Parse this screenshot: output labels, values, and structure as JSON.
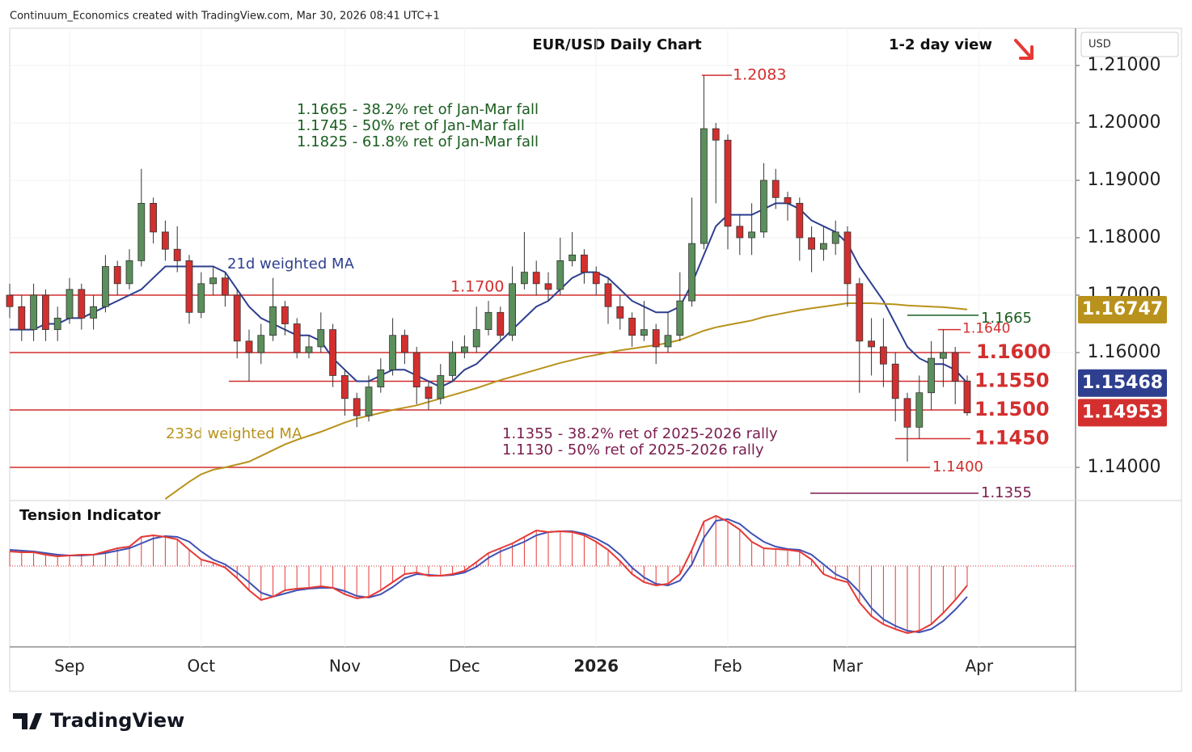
{
  "header": "Continuum_Economics created with TradingView.com, Mar 30, 2026 08:41 UTC+1",
  "brand": "TradingView",
  "chart_data": {
    "type": "candlestick",
    "title": "EUR/USD Daily Chart",
    "subtitle": "1-2 day view",
    "currency": "USD",
    "categories": [
      null,
      null,
      null,
      null,
      null,
      "Sep",
      null,
      null,
      null,
      null,
      null,
      null,
      null,
      null,
      null,
      null,
      "Oct",
      null,
      null,
      null,
      null,
      null,
      null,
      null,
      null,
      null,
      null,
      null,
      "Nov",
      null,
      null,
      null,
      null,
      null,
      null,
      null,
      null,
      null,
      "Dec",
      null,
      null,
      null,
      null,
      null,
      null,
      null,
      null,
      null,
      null,
      "2026",
      null,
      null,
      null,
      null,
      null,
      null,
      null,
      null,
      null,
      null,
      "Feb",
      null,
      null,
      null,
      null,
      null,
      null,
      null,
      null,
      null,
      "Mar",
      null,
      null,
      null,
      null,
      null,
      null,
      null,
      null,
      null,
      null,
      "Apr"
    ],
    "ohlc": [
      [
        1.17,
        1.172,
        1.166,
        1.168
      ],
      [
        1.168,
        1.17,
        1.162,
        1.164
      ],
      [
        1.164,
        1.172,
        1.162,
        1.17
      ],
      [
        1.17,
        1.171,
        1.162,
        1.164
      ],
      [
        1.164,
        1.168,
        1.162,
        1.166
      ],
      [
        1.166,
        1.173,
        1.165,
        1.171
      ],
      [
        1.171,
        1.172,
        1.164,
        1.166
      ],
      [
        1.166,
        1.17,
        1.164,
        1.168
      ],
      [
        1.168,
        1.177,
        1.167,
        1.175
      ],
      [
        1.175,
        1.176,
        1.17,
        1.172
      ],
      [
        1.172,
        1.178,
        1.171,
        1.176
      ],
      [
        1.176,
        1.192,
        1.175,
        1.186
      ],
      [
        1.186,
        1.187,
        1.179,
        1.181
      ],
      [
        1.181,
        1.183,
        1.176,
        1.178
      ],
      [
        1.178,
        1.182,
        1.174,
        1.176
      ],
      [
        1.176,
        1.177,
        1.165,
        1.167
      ],
      [
        1.167,
        1.174,
        1.166,
        1.172
      ],
      [
        1.172,
        1.175,
        1.17,
        1.173
      ],
      [
        1.173,
        1.174,
        1.168,
        1.17
      ],
      [
        1.17,
        1.171,
        1.159,
        1.162
      ],
      [
        1.162,
        1.164,
        1.155,
        1.16
      ],
      [
        1.16,
        1.165,
        1.158,
        1.163
      ],
      [
        1.163,
        1.173,
        1.162,
        1.168
      ],
      [
        1.168,
        1.169,
        1.163,
        1.165
      ],
      [
        1.165,
        1.166,
        1.159,
        1.16
      ],
      [
        1.16,
        1.163,
        1.159,
        1.161
      ],
      [
        1.161,
        1.167,
        1.16,
        1.164
      ],
      [
        1.164,
        1.165,
        1.154,
        1.156
      ],
      [
        1.156,
        1.157,
        1.149,
        1.152
      ],
      [
        1.152,
        1.153,
        1.147,
        1.149
      ],
      [
        1.149,
        1.156,
        1.148,
        1.154
      ],
      [
        1.154,
        1.159,
        1.153,
        1.157
      ],
      [
        1.157,
        1.166,
        1.156,
        1.163
      ],
      [
        1.163,
        1.164,
        1.158,
        1.16
      ],
      [
        1.16,
        1.161,
        1.151,
        1.154
      ],
      [
        1.154,
        1.155,
        1.15,
        1.152
      ],
      [
        1.152,
        1.158,
        1.151,
        1.156
      ],
      [
        1.156,
        1.162,
        1.155,
        1.16
      ],
      [
        1.16,
        1.163,
        1.159,
        1.161
      ],
      [
        1.161,
        1.168,
        1.16,
        1.164
      ],
      [
        1.164,
        1.169,
        1.163,
        1.167
      ],
      [
        1.167,
        1.168,
        1.162,
        1.163
      ],
      [
        1.163,
        1.175,
        1.162,
        1.172
      ],
      [
        1.172,
        1.181,
        1.171,
        1.174
      ],
      [
        1.174,
        1.176,
        1.17,
        1.172
      ],
      [
        1.172,
        1.174,
        1.169,
        1.171
      ],
      [
        1.171,
        1.18,
        1.17,
        1.176
      ],
      [
        1.176,
        1.181,
        1.175,
        1.177
      ],
      [
        1.177,
        1.178,
        1.172,
        1.174
      ],
      [
        1.174,
        1.175,
        1.17,
        1.172
      ],
      [
        1.172,
        1.173,
        1.165,
        1.168
      ],
      [
        1.168,
        1.17,
        1.164,
        1.166
      ],
      [
        1.166,
        1.167,
        1.161,
        1.163
      ],
      [
        1.163,
        1.169,
        1.162,
        1.164
      ],
      [
        1.164,
        1.165,
        1.158,
        1.161
      ],
      [
        1.161,
        1.167,
        1.16,
        1.163
      ],
      [
        1.163,
        1.174,
        1.162,
        1.169
      ],
      [
        1.169,
        1.187,
        1.168,
        1.179
      ],
      [
        1.179,
        1.2083,
        1.178,
        1.199
      ],
      [
        1.199,
        1.2,
        1.186,
        1.197
      ],
      [
        1.197,
        1.198,
        1.178,
        1.182
      ],
      [
        1.182,
        1.184,
        1.177,
        1.18
      ],
      [
        1.18,
        1.186,
        1.177,
        1.181
      ],
      [
        1.181,
        1.193,
        1.18,
        1.19
      ],
      [
        1.19,
        1.192,
        1.185,
        1.187
      ],
      [
        1.187,
        1.188,
        1.183,
        1.186
      ],
      [
        1.186,
        1.187,
        1.176,
        1.18
      ],
      [
        1.18,
        1.182,
        1.174,
        1.178
      ],
      [
        1.178,
        1.182,
        1.176,
        1.179
      ],
      [
        1.179,
        1.183,
        1.177,
        1.181
      ],
      [
        1.181,
        1.182,
        1.168,
        1.172
      ],
      [
        1.172,
        1.173,
        1.153,
        1.162
      ],
      [
        1.162,
        1.166,
        1.156,
        1.161
      ],
      [
        1.161,
        1.166,
        1.154,
        1.158
      ],
      [
        1.158,
        1.16,
        1.148,
        1.152
      ],
      [
        1.152,
        1.153,
        1.141,
        1.147
      ],
      [
        1.147,
        1.156,
        1.145,
        1.153
      ],
      [
        1.153,
        1.162,
        1.15,
        1.159
      ],
      [
        1.159,
        1.164,
        1.154,
        1.16
      ],
      [
        1.16,
        1.161,
        1.151,
        1.155
      ],
      [
        1.155,
        1.156,
        1.149,
        1.1495
      ],
      null
    ],
    "up_color": "#5b8f5b",
    "down_color": "#d32f2f",
    "series": [
      {
        "name": "21d weighted MA",
        "color": "#2e3f8f",
        "values": [
          1.164,
          1.164,
          1.164,
          1.165,
          1.165,
          1.166,
          1.166,
          1.167,
          1.168,
          1.169,
          1.17,
          1.171,
          1.173,
          1.175,
          1.175,
          1.175,
          1.175,
          1.175,
          1.174,
          1.171,
          1.168,
          1.166,
          1.165,
          1.164,
          1.163,
          1.163,
          1.162,
          1.159,
          1.157,
          1.155,
          1.155,
          1.156,
          1.157,
          1.157,
          1.156,
          1.155,
          1.154,
          1.155,
          1.157,
          1.158,
          1.16,
          1.162,
          1.164,
          1.166,
          1.168,
          1.169,
          1.171,
          1.173,
          1.174,
          1.174,
          1.173,
          1.171,
          1.169,
          1.168,
          1.167,
          1.167,
          1.168,
          1.172,
          1.177,
          1.182,
          1.184,
          1.184,
          1.184,
          1.185,
          1.186,
          1.186,
          1.185,
          1.183,
          1.182,
          1.181,
          1.179,
          1.175,
          1.172,
          1.169,
          1.165,
          1.161,
          1.159,
          1.158,
          1.158,
          1.157,
          1.1547,
          null
        ]
      },
      {
        "name": "233d weighted MA",
        "color": "#b8921c",
        "values": [
          null,
          null,
          null,
          null,
          null,
          null,
          null,
          null,
          null,
          null,
          null,
          null,
          null,
          1.1345,
          1.136,
          1.1375,
          1.1388,
          1.1396,
          1.14,
          1.1405,
          1.141,
          1.142,
          1.143,
          1.144,
          1.1448,
          1.1455,
          1.1462,
          1.147,
          1.1478,
          1.1485,
          1.149,
          1.1495,
          1.15,
          1.1504,
          1.1508,
          1.1514,
          1.152,
          1.1526,
          1.1532,
          1.1538,
          1.1545,
          1.1552,
          1.1558,
          1.1564,
          1.157,
          1.1576,
          1.1582,
          1.1587,
          1.1592,
          1.1596,
          1.16,
          1.1604,
          1.1607,
          1.161,
          1.1613,
          1.1617,
          1.1622,
          1.163,
          1.1638,
          1.1644,
          1.1648,
          1.1652,
          1.1656,
          1.1662,
          1.1666,
          1.167,
          1.1674,
          1.1677,
          1.168,
          1.1683,
          1.1686,
          1.1686,
          1.1686,
          1.1685,
          1.1684,
          1.1682,
          1.1681,
          1.168,
          1.1679,
          1.1677,
          1.1675,
          null
        ]
      }
    ],
    "ylim": [
      1.13437,
      1.21648
    ],
    "yticks": [
      {
        "value": 1.21,
        "label": "1.21000"
      },
      {
        "value": 1.2,
        "label": "1.20000"
      },
      {
        "value": 1.19,
        "label": "1.19000"
      },
      {
        "value": 1.18,
        "label": "1.18000"
      },
      {
        "value": 1.17,
        "label": "1.17000"
      },
      {
        "value": 1.16,
        "label": "1.16000"
      },
      {
        "value": 1.14,
        "label": "1.14000"
      }
    ],
    "price_labels": [
      {
        "value": 1.16747,
        "color": "#b8921c"
      },
      {
        "value": 1.15468,
        "color": "#2e3f8f"
      },
      {
        "value": 1.14953,
        "color": "#d32f2f"
      }
    ],
    "levels": [
      {
        "value": 1.2083,
        "label": "1.2083"
      },
      {
        "value": 1.17,
        "label": "1.1700"
      },
      {
        "value": 1.1665,
        "label": "1.1665"
      },
      {
        "value": 1.164,
        "label": "1.1640"
      },
      {
        "value": 1.16,
        "label": "1.1600"
      },
      {
        "value": 1.155,
        "label": "1.1550"
      },
      {
        "value": 1.15,
        "label": "1.1500"
      },
      {
        "value": 1.145,
        "label": "1.1450"
      },
      {
        "value": 1.14,
        "label": "1.1400"
      },
      {
        "value": 1.1355,
        "label": "1.1355"
      }
    ],
    "fib_notes_green": [
      "1.1665 - 38.2% ret of Jan-Mar fall",
      "1.1745 - 50% ret of Jan-Mar fall",
      "1.1825 - 61.8% ret of Jan-Mar fall"
    ],
    "fib_notes_maroon": [
      "1.1355 - 38.2% ret of 2025-2026 rally",
      "1.1130 - 50% ret of 2025-2026 rally"
    ],
    "indicator": {
      "title": "Tension Indicator",
      "ylim": [
        -1,
        1
      ],
      "tension": {
        "color": "#e53935",
        "values": [
          0.18,
          0.17,
          0.17,
          0.14,
          0.12,
          0.13,
          0.14,
          0.14,
          0.18,
          0.22,
          0.24,
          0.36,
          0.38,
          0.36,
          0.33,
          0.2,
          0.08,
          0.04,
          -0.02,
          -0.15,
          -0.3,
          -0.42,
          -0.38,
          -0.3,
          -0.28,
          -0.27,
          -0.25,
          -0.27,
          -0.35,
          -0.4,
          -0.38,
          -0.3,
          -0.2,
          -0.1,
          -0.08,
          -0.12,
          -0.12,
          -0.1,
          -0.06,
          0.05,
          0.16,
          0.22,
          0.28,
          0.36,
          0.44,
          0.42,
          0.43,
          0.42,
          0.38,
          0.3,
          0.2,
          0.06,
          -0.1,
          -0.2,
          -0.24,
          -0.22,
          -0.1,
          0.2,
          0.55,
          0.62,
          0.55,
          0.45,
          0.3,
          0.22,
          0.21,
          0.2,
          0.18,
          0.08,
          -0.1,
          -0.16,
          -0.2,
          -0.45,
          -0.62,
          -0.72,
          -0.78,
          -0.83,
          -0.8,
          -0.72,
          -0.58,
          -0.42,
          -0.24,
          null
        ]
      },
      "signal": {
        "color": "#3f51b5",
        "values": [
          0.2,
          0.19,
          0.18,
          0.16,
          0.14,
          0.13,
          0.13,
          0.14,
          0.16,
          0.19,
          0.22,
          0.28,
          0.34,
          0.37,
          0.36,
          0.3,
          0.18,
          0.08,
          0.02,
          -0.08,
          -0.2,
          -0.33,
          -0.38,
          -0.34,
          -0.3,
          -0.28,
          -0.27,
          -0.27,
          -0.31,
          -0.37,
          -0.39,
          -0.35,
          -0.26,
          -0.15,
          -0.1,
          -0.11,
          -0.12,
          -0.11,
          -0.08,
          -0.01,
          0.1,
          0.18,
          0.24,
          0.3,
          0.38,
          0.42,
          0.43,
          0.43,
          0.4,
          0.34,
          0.26,
          0.14,
          -0.02,
          -0.14,
          -0.22,
          -0.24,
          -0.18,
          0.02,
          0.35,
          0.56,
          0.58,
          0.52,
          0.4,
          0.3,
          0.24,
          0.21,
          0.2,
          0.14,
          0.02,
          -0.1,
          -0.17,
          -0.32,
          -0.52,
          -0.66,
          -0.74,
          -0.8,
          -0.82,
          -0.78,
          -0.68,
          -0.54,
          -0.38,
          null
        ]
      }
    }
  }
}
